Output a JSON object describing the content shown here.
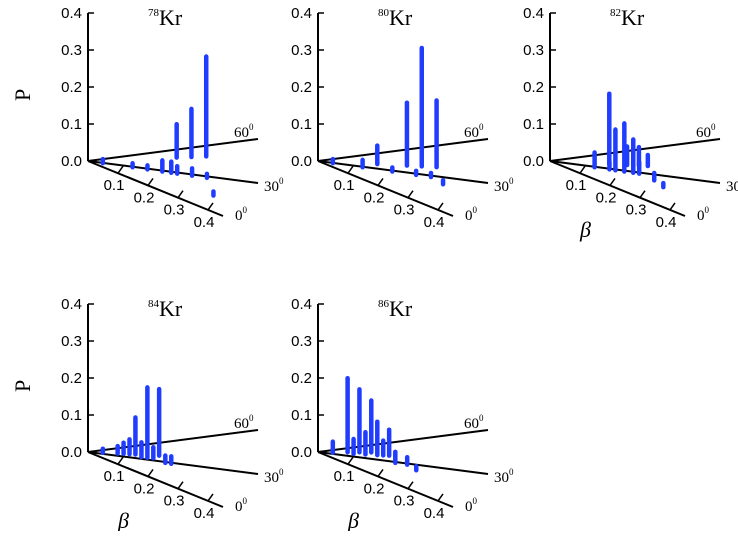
{
  "colors": {
    "bars": "#1f3cff",
    "axes": "#000000"
  },
  "chart_data": [
    {
      "type": "bar3d",
      "title_mass": "78",
      "title_element": "Kr",
      "ylabel": "P",
      "xlabel": "",
      "zlim": [
        0,
        0.4
      ],
      "z_ticks": [
        "0.0",
        "0.1",
        "0.2",
        "0.3",
        "0.4"
      ],
      "beta_ticks": [
        "0.1",
        "0.2",
        "0.3",
        "0.4"
      ],
      "gamma_axis_labels": [
        {
          "value": "0",
          "unit": "0"
        },
        {
          "value": "30",
          "unit": "0"
        },
        {
          "value": "60",
          "unit": "0"
        }
      ],
      "points": [
        {
          "beta": 0.05,
          "gamma": 30,
          "p": 0.01
        },
        {
          "beta": 0.15,
          "gamma": 30,
          "p": 0.01
        },
        {
          "beta": 0.2,
          "gamma": 30,
          "p": 0.01
        },
        {
          "beta": 0.25,
          "gamma": 30,
          "p": 0.03
        },
        {
          "beta": 0.28,
          "gamma": 30,
          "p": 0.03
        },
        {
          "beta": 0.3,
          "gamma": 30,
          "p": 0.02
        },
        {
          "beta": 0.3,
          "gamma": 50,
          "p": 0.09
        },
        {
          "beta": 0.35,
          "gamma": 30,
          "p": 0.02
        },
        {
          "beta": 0.35,
          "gamma": 50,
          "p": 0.13
        },
        {
          "beta": 0.4,
          "gamma": 30,
          "p": 0.01
        },
        {
          "beta": 0.4,
          "gamma": 50,
          "p": 0.27
        },
        {
          "beta": 0.42,
          "gamma": 15,
          "p": 0.01
        }
      ]
    },
    {
      "type": "bar3d",
      "title_mass": "80",
      "title_element": "Kr",
      "ylabel": "",
      "xlabel": "",
      "zlim": [
        0,
        0.4
      ],
      "z_ticks": [
        "0.0",
        "0.1",
        "0.2",
        "0.3",
        "0.4"
      ],
      "beta_ticks": [
        "0.1",
        "0.2",
        "0.3",
        "0.4"
      ],
      "gamma_axis_labels": [
        {
          "value": "0",
          "unit": "0"
        },
        {
          "value": "30",
          "unit": "0"
        },
        {
          "value": "60",
          "unit": "0"
        }
      ],
      "points": [
        {
          "beta": 0.05,
          "gamma": 30,
          "p": 0.01
        },
        {
          "beta": 0.15,
          "gamma": 30,
          "p": 0.02
        },
        {
          "beta": 0.2,
          "gamma": 40,
          "p": 0.05
        },
        {
          "beta": 0.25,
          "gamma": 30,
          "p": 0.01
        },
        {
          "beta": 0.3,
          "gamma": 40,
          "p": 0.17
        },
        {
          "beta": 0.33,
          "gamma": 30,
          "p": 0.01
        },
        {
          "beta": 0.35,
          "gamma": 40,
          "p": 0.32
        },
        {
          "beta": 0.38,
          "gamma": 30,
          "p": 0.01
        },
        {
          "beta": 0.4,
          "gamma": 40,
          "p": 0.18
        },
        {
          "beta": 0.42,
          "gamma": 25,
          "p": 0.01
        }
      ]
    },
    {
      "type": "bar3d",
      "title_mass": "82",
      "title_element": "Kr",
      "ylabel": "",
      "xlabel": "β",
      "zlim": [
        0,
        0.4
      ],
      "z_ticks": [
        "0.0",
        "0.1",
        "0.2",
        "0.3",
        "0.4"
      ],
      "beta_ticks": [
        "0.1",
        "0.2",
        "0.3",
        "0.4"
      ],
      "gamma_axis_labels": [
        {
          "value": "0",
          "unit": "0"
        },
        {
          "value": "30",
          "unit": "0"
        },
        {
          "value": "60",
          "unit": "0"
        }
      ],
      "points": [
        {
          "beta": 0.15,
          "gamma": 30,
          "p": 0.04
        },
        {
          "beta": 0.2,
          "gamma": 30,
          "p": 0.02
        },
        {
          "beta": 0.2,
          "gamma": 40,
          "p": 0.19
        },
        {
          "beta": 0.22,
          "gamma": 30,
          "p": 0.11
        },
        {
          "beta": 0.25,
          "gamma": 30,
          "p": 0.13
        },
        {
          "beta": 0.26,
          "gamma": 40,
          "p": 0.05
        },
        {
          "beta": 0.28,
          "gamma": 30,
          "p": 0.09
        },
        {
          "beta": 0.3,
          "gamma": 40,
          "p": 0.05
        },
        {
          "beta": 0.3,
          "gamma": 30,
          "p": 0.03
        },
        {
          "beta": 0.33,
          "gamma": 40,
          "p": 0.03
        },
        {
          "beta": 0.35,
          "gamma": 25,
          "p": 0.02
        },
        {
          "beta": 0.38,
          "gamma": 20,
          "p": 0.01
        }
      ]
    },
    {
      "type": "bar3d",
      "title_mass": "84",
      "title_element": "Kr",
      "ylabel": "P",
      "xlabel": "β",
      "zlim": [
        0,
        0.4
      ],
      "z_ticks": [
        "0.0",
        "0.1",
        "0.2",
        "0.3",
        "0.4"
      ],
      "beta_ticks": [
        "0.1",
        "0.2",
        "0.3",
        "0.4"
      ],
      "gamma_axis_labels": [
        {
          "value": "0",
          "unit": "0"
        },
        {
          "value": "30",
          "unit": "0"
        },
        {
          "value": "60",
          "unit": "0"
        }
      ],
      "points": [
        {
          "beta": 0.05,
          "gamma": 40,
          "p": 0.01
        },
        {
          "beta": 0.1,
          "gamma": 40,
          "p": 0.02
        },
        {
          "beta": 0.12,
          "gamma": 40,
          "p": 0.03
        },
        {
          "beta": 0.14,
          "gamma": 40,
          "p": 0.04
        },
        {
          "beta": 0.16,
          "gamma": 40,
          "p": 0.1
        },
        {
          "beta": 0.18,
          "gamma": 35,
          "p": 0.04
        },
        {
          "beta": 0.2,
          "gamma": 35,
          "p": 0.19
        },
        {
          "beta": 0.22,
          "gamma": 35,
          "p": 0.03
        },
        {
          "beta": 0.24,
          "gamma": 40,
          "p": 0.18
        },
        {
          "beta": 0.26,
          "gamma": 30,
          "p": 0.02
        },
        {
          "beta": 0.28,
          "gamma": 30,
          "p": 0.02
        }
      ]
    },
    {
      "type": "bar3d",
      "title_mass": "86",
      "title_element": "Kr",
      "ylabel": "",
      "xlabel": "β",
      "zlim": [
        0,
        0.4
      ],
      "z_ticks": [
        "0.0",
        "0.1",
        "0.2",
        "0.3",
        "0.4"
      ],
      "beta_ticks": [
        "0.1",
        "0.2",
        "0.3",
        "0.4"
      ],
      "gamma_axis_labels": [
        {
          "value": "0",
          "unit": "0"
        },
        {
          "value": "30",
          "unit": "0"
        },
        {
          "value": "60",
          "unit": "0"
        }
      ],
      "points": [
        {
          "beta": 0.05,
          "gamma": 40,
          "p": 0.03
        },
        {
          "beta": 0.1,
          "gamma": 45,
          "p": 0.2
        },
        {
          "beta": 0.12,
          "gamma": 40,
          "p": 0.04
        },
        {
          "beta": 0.14,
          "gamma": 45,
          "p": 0.17
        },
        {
          "beta": 0.16,
          "gamma": 40,
          "p": 0.06
        },
        {
          "beta": 0.18,
          "gamma": 45,
          "p": 0.14
        },
        {
          "beta": 0.2,
          "gamma": 40,
          "p": 0.09
        },
        {
          "beta": 0.22,
          "gamma": 40,
          "p": 0.04
        },
        {
          "beta": 0.24,
          "gamma": 40,
          "p": 0.07
        },
        {
          "beta": 0.26,
          "gamma": 30,
          "p": 0.03
        },
        {
          "beta": 0.3,
          "gamma": 30,
          "p": 0.02
        },
        {
          "beta": 0.33,
          "gamma": 25,
          "p": 0.01
        }
      ]
    }
  ]
}
